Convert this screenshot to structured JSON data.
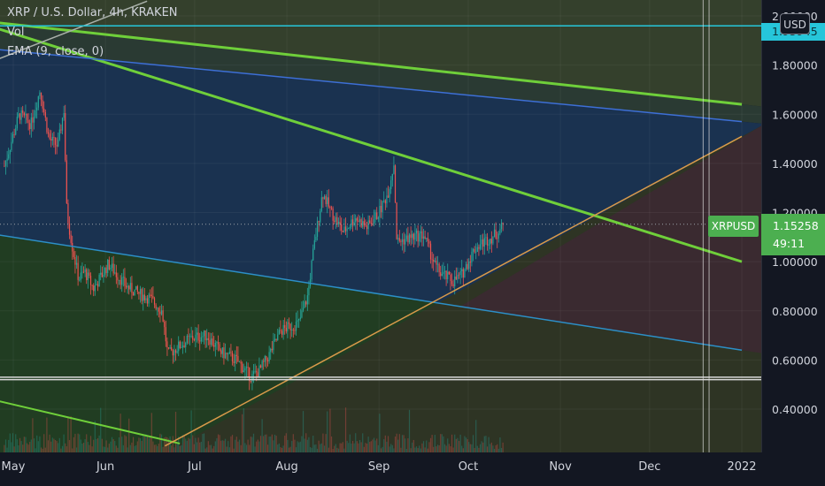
{
  "symbol": {
    "title": "XRP / U.S. Dollar, 4h, KRAKEN",
    "indicator_vol": "Vol",
    "indicator_ema": "EMA (9, close, 0)"
  },
  "currency_button": "USD",
  "price_badge": {
    "symbol": "XRPUSD",
    "price": "1.15258",
    "countdown": "49:11"
  },
  "hline_price_tag": "1.95945",
  "colors": {
    "background": "#131722",
    "up": "#26a69a",
    "down": "#ef5350",
    "green_trend": "#6fcf3a",
    "blue_trend": "#3d6fd6",
    "cyan_trend": "#2c8fc7",
    "orange_trend": "#d99a4a",
    "hline": "#26c6da",
    "badge": "#4caf50"
  },
  "chart_data": {
    "type": "candlestick",
    "title": "XRP / U.S. Dollar, 4h, KRAKEN",
    "ylim": [
      0.25,
      2.06
    ],
    "y_ticks": [
      "2.00000",
      "1.80000",
      "1.60000",
      "1.40000",
      "1.20000",
      "1.00000",
      "0.80000",
      "0.60000",
      "0.40000"
    ],
    "x_ticks": [
      "May",
      "Jun",
      "Jul",
      "Aug",
      "Sep",
      "Oct",
      "Nov",
      "Dec",
      "2022"
    ],
    "last_price": 1.15258,
    "horizontal_lines": [
      1.95945,
      0.53,
      0.52
    ],
    "vertical_marker_dates": [
      "2021-12-19",
      "2021-12-21"
    ],
    "close_trajectory": [
      [
        "2021-04-28",
        1.39
      ],
      [
        "2021-05-03",
        1.6
      ],
      [
        "2021-05-07",
        1.56
      ],
      [
        "2021-05-10",
        1.7
      ],
      [
        "2021-05-13",
        1.5
      ],
      [
        "2021-05-16",
        1.47
      ],
      [
        "2021-05-18",
        1.62
      ],
      [
        "2021-05-19",
        1.2
      ],
      [
        "2021-05-21",
        1.05
      ],
      [
        "2021-05-23",
        0.93
      ],
      [
        "2021-05-25",
        0.96
      ],
      [
        "2021-05-28",
        0.89
      ],
      [
        "2021-06-02",
        0.99
      ],
      [
        "2021-06-08",
        0.9
      ],
      [
        "2021-06-12",
        0.87
      ],
      [
        "2021-06-16",
        0.85
      ],
      [
        "2021-06-20",
        0.8
      ],
      [
        "2021-06-22",
        0.62
      ],
      [
        "2021-06-25",
        0.65
      ],
      [
        "2021-06-30",
        0.69
      ],
      [
        "2021-07-05",
        0.7
      ],
      [
        "2021-07-10",
        0.63
      ],
      [
        "2021-07-15",
        0.6
      ],
      [
        "2021-07-20",
        0.53
      ],
      [
        "2021-07-23",
        0.56
      ],
      [
        "2021-07-26",
        0.62
      ],
      [
        "2021-07-30",
        0.72
      ],
      [
        "2021-08-05",
        0.75
      ],
      [
        "2021-08-08",
        0.86
      ],
      [
        "2021-08-10",
        1.05
      ],
      [
        "2021-08-13",
        1.28
      ],
      [
        "2021-08-16",
        1.2
      ],
      [
        "2021-08-20",
        1.12
      ],
      [
        "2021-08-24",
        1.18
      ],
      [
        "2021-08-28",
        1.14
      ],
      [
        "2021-09-01",
        1.2
      ],
      [
        "2021-09-04",
        1.28
      ],
      [
        "2021-09-06",
        1.4
      ],
      [
        "2021-09-07",
        1.08
      ],
      [
        "2021-09-12",
        1.1
      ],
      [
        "2021-09-16",
        1.11
      ],
      [
        "2021-09-20",
        0.98
      ],
      [
        "2021-09-22",
        0.95
      ],
      [
        "2021-09-26",
        0.92
      ],
      [
        "2021-09-29",
        0.95
      ],
      [
        "2021-10-03",
        1.05
      ],
      [
        "2021-10-06",
        1.08
      ],
      [
        "2021-10-09",
        1.1
      ],
      [
        "2021-10-11",
        1.12
      ],
      [
        "2021-10-13",
        1.15
      ]
    ],
    "trend_lines": [
      {
        "color": "green",
        "from": [
          "2021-04-20",
          1.98
        ],
        "to": [
          "2022-01-01",
          1.64
        ]
      },
      {
        "color": "green",
        "from": [
          "2021-04-20",
          1.97
        ],
        "to": [
          "2022-01-01",
          1.0
        ]
      },
      {
        "color": "blue",
        "from": [
          "2021-04-20",
          1.87
        ],
        "to": [
          "2022-01-01",
          1.57
        ]
      },
      {
        "color": "cyan",
        "from": [
          "2021-04-20",
          1.12
        ],
        "to": [
          "2022-01-01",
          0.64
        ]
      },
      {
        "color": "green",
        "from": [
          "2021-04-20",
          0.45
        ],
        "to": [
          "2021-06-26",
          0.26
        ]
      },
      {
        "color": "orange",
        "from": [
          "2021-06-21",
          0.25
        ],
        "to": [
          "2022-01-01",
          1.51
        ]
      },
      {
        "color": "gray",
        "from": [
          "2021-04-25",
          1.82
        ],
        "to": [
          "2021-06-15",
          2.06
        ]
      }
    ],
    "zones": [
      {
        "name": "above",
        "from_line": 0,
        "color": "#34402c"
      },
      {
        "name": "upper-channel",
        "between": [
          2,
          3
        ],
        "color": "#1a3250"
      },
      {
        "name": "lower-channel",
        "below": 3,
        "color": "#213d22"
      },
      {
        "name": "wedge",
        "right_of": 5,
        "color": "#3a2a30"
      }
    ],
    "grid": true,
    "volume": true
  }
}
